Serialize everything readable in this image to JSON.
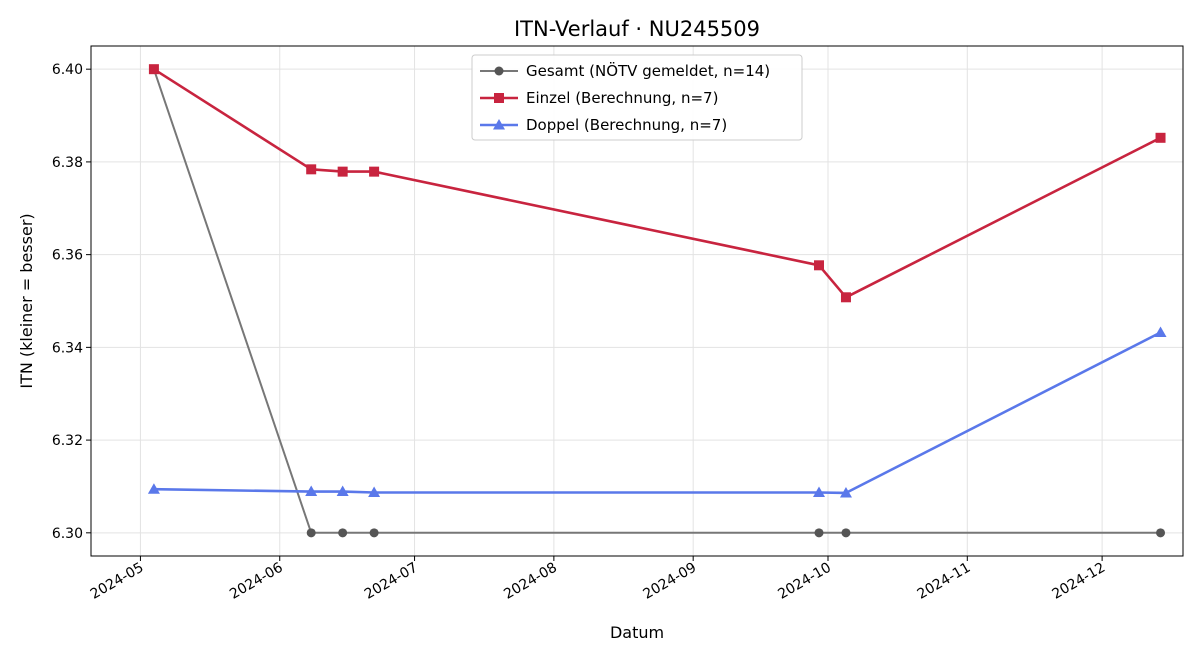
{
  "chart_data": {
    "type": "line",
    "title": "ITN-Verlauf · NU245509",
    "xlabel": "Datum",
    "ylabel": "ITN  (kleiner = besser)",
    "x_type": "date",
    "xlim": [
      "2024-04-20",
      "2024-12-19"
    ],
    "ylim": [
      6.295,
      6.405
    ],
    "y_ticks": [
      6.3,
      6.32,
      6.34,
      6.36,
      6.38,
      6.4
    ],
    "y_tick_labels": [
      "6.30",
      "6.32",
      "6.34",
      "6.36",
      "6.38",
      "6.40"
    ],
    "x_ticks": [
      "2024-05-01",
      "2024-06-01",
      "2024-07-01",
      "2024-08-01",
      "2024-09-01",
      "2024-10-01",
      "2024-11-01",
      "2024-12-01"
    ],
    "x_tick_labels": [
      "2024-05",
      "2024-06",
      "2024-07",
      "2024-08",
      "2024-09",
      "2024-10",
      "2024-11",
      "2024-12"
    ],
    "grid": true,
    "legend_position": "upper-center",
    "series": [
      {
        "name": "Gesamt (NÖTV gemeldet, n=14)",
        "color": "#777777",
        "marker": "circle",
        "x": [
          "2024-05-04",
          "2024-06-08",
          "2024-06-15",
          "2024-06-22",
          "2024-09-29",
          "2024-10-05",
          "2024-12-14"
        ],
        "y": [
          6.4,
          6.3,
          6.3,
          6.3,
          6.3,
          6.3,
          6.3
        ]
      },
      {
        "name": "Einzel (Berechnung, n=7)",
        "color": "#c8243f",
        "marker": "square",
        "x": [
          "2024-05-04",
          "2024-06-08",
          "2024-06-15",
          "2024-06-22",
          "2024-09-29",
          "2024-10-05",
          "2024-12-14"
        ],
        "y": [
          6.4,
          6.3784,
          6.3779,
          6.3779,
          6.3577,
          6.3508,
          6.3852
        ]
      },
      {
        "name": "Doppel (Berechnung, n=7)",
        "color": "#5a78ea",
        "marker": "triangle",
        "x": [
          "2024-05-04",
          "2024-06-08",
          "2024-06-15",
          "2024-06-22",
          "2024-09-29",
          "2024-10-05",
          "2024-12-14"
        ],
        "y": [
          6.3094,
          6.3089,
          6.3089,
          6.3087,
          6.3087,
          6.3086,
          6.3432
        ]
      }
    ]
  }
}
